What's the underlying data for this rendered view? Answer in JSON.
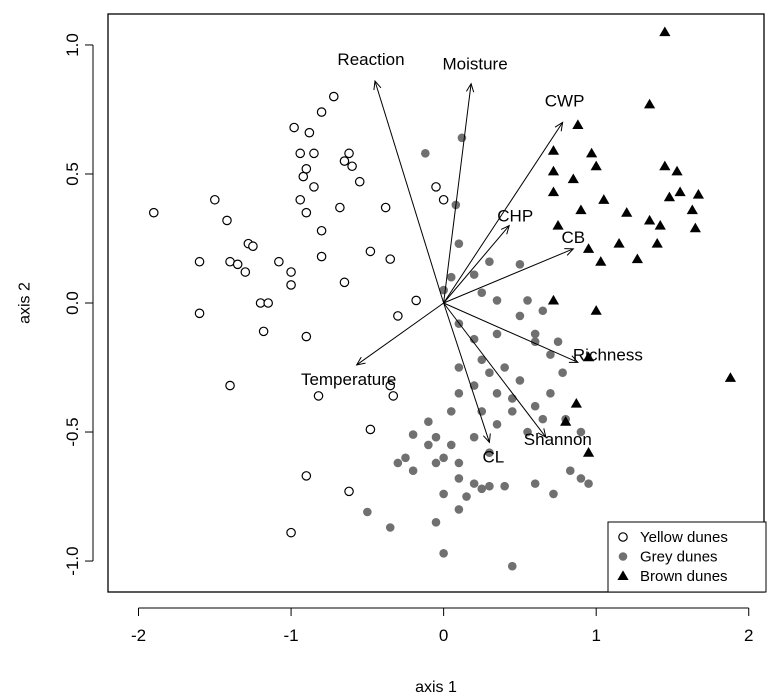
{
  "chart_data": {
    "type": "scatter",
    "title": "",
    "xlabel": "axis 1",
    "ylabel": "axis 2",
    "xlim": [
      -2.2,
      2.1
    ],
    "ylim": [
      -1.12,
      1.12
    ],
    "x_ticks": [
      -2,
      -1,
      0,
      1,
      2
    ],
    "y_ticks": [
      -1.0,
      -0.5,
      0.0,
      0.5,
      1.0
    ],
    "x_tick_labels": [
      "-2",
      "-1",
      "0",
      "1",
      "2"
    ],
    "y_tick_labels": [
      "-1.0",
      "-0.5",
      "0.0",
      "0.5",
      "1.0"
    ],
    "grid": false,
    "legend_position": "bottom-right",
    "series": [
      {
        "name": "Yellow dunes",
        "marker": "open-circle",
        "color": "#000000",
        "points": [
          [
            -1.9,
            0.35
          ],
          [
            -1.6,
            0.16
          ],
          [
            -1.6,
            -0.04
          ],
          [
            -1.5,
            0.4
          ],
          [
            -1.42,
            0.32
          ],
          [
            -1.4,
            0.16
          ],
          [
            -1.35,
            0.15
          ],
          [
            -1.3,
            0.12
          ],
          [
            -1.28,
            0.23
          ],
          [
            -1.25,
            0.22
          ],
          [
            -1.2,
            0.0
          ],
          [
            -1.18,
            -0.11
          ],
          [
            -1.15,
            0.0
          ],
          [
            -1.08,
            0.16
          ],
          [
            -1.0,
            0.12
          ],
          [
            -1.0,
            0.07
          ],
          [
            -0.98,
            0.68
          ],
          [
            -0.94,
            0.58
          ],
          [
            -0.94,
            0.4
          ],
          [
            -0.92,
            0.49
          ],
          [
            -0.9,
            0.52
          ],
          [
            -0.9,
            0.35
          ],
          [
            -0.88,
            0.66
          ],
          [
            -0.85,
            0.58
          ],
          [
            -0.85,
            0.45
          ],
          [
            -0.8,
            0.74
          ],
          [
            -0.8,
            0.28
          ],
          [
            -0.8,
            0.18
          ],
          [
            -0.72,
            0.8
          ],
          [
            -0.68,
            0.37
          ],
          [
            -0.65,
            0.55
          ],
          [
            -0.62,
            0.58
          ],
          [
            -0.6,
            0.53
          ],
          [
            -0.55,
            0.47
          ],
          [
            -0.48,
            0.2
          ],
          [
            -0.38,
            0.37
          ],
          [
            -0.35,
            0.17
          ],
          [
            -0.3,
            -0.05
          ],
          [
            -0.18,
            0.01
          ],
          [
            -0.05,
            0.45
          ],
          [
            0.0,
            0.4
          ],
          [
            -0.65,
            0.08
          ],
          [
            -1.4,
            -0.32
          ],
          [
            -0.9,
            -0.13
          ],
          [
            -0.82,
            -0.36
          ],
          [
            -0.9,
            -0.67
          ],
          [
            -0.62,
            -0.73
          ],
          [
            -0.48,
            -0.49
          ],
          [
            -0.35,
            -0.32
          ],
          [
            -0.33,
            -0.36
          ],
          [
            -1.0,
            -0.89
          ]
        ]
      },
      {
        "name": "Grey dunes",
        "marker": "filled-circle",
        "color": "#707070",
        "points": [
          [
            0.12,
            0.64
          ],
          [
            -0.12,
            0.58
          ],
          [
            0.08,
            0.38
          ],
          [
            0.1,
            0.23
          ],
          [
            0.05,
            0.1
          ],
          [
            0.0,
            0.05
          ],
          [
            0.3,
            0.16
          ],
          [
            0.5,
            0.15
          ],
          [
            0.2,
            0.11
          ],
          [
            0.25,
            0.04
          ],
          [
            0.35,
            0.01
          ],
          [
            0.55,
            0.01
          ],
          [
            0.65,
            -0.03
          ],
          [
            0.1,
            -0.08
          ],
          [
            0.2,
            -0.14
          ],
          [
            0.35,
            -0.12
          ],
          [
            0.5,
            -0.05
          ],
          [
            0.6,
            -0.12
          ],
          [
            0.75,
            -0.15
          ],
          [
            0.1,
            -0.25
          ],
          [
            0.25,
            -0.22
          ],
          [
            0.3,
            -0.27
          ],
          [
            0.4,
            -0.25
          ],
          [
            0.5,
            -0.3
          ],
          [
            0.6,
            -0.15
          ],
          [
            0.7,
            -0.2
          ],
          [
            0.78,
            -0.27
          ],
          [
            0.1,
            -0.35
          ],
          [
            0.2,
            -0.32
          ],
          [
            0.35,
            -0.35
          ],
          [
            0.45,
            -0.37
          ],
          [
            0.6,
            -0.4
          ],
          [
            0.7,
            -0.35
          ],
          [
            0.8,
            -0.45
          ],
          [
            0.9,
            -0.5
          ],
          [
            0.05,
            -0.42
          ],
          [
            0.25,
            -0.42
          ],
          [
            0.35,
            -0.47
          ],
          [
            0.45,
            -0.42
          ],
          [
            0.55,
            -0.5
          ],
          [
            0.65,
            -0.45
          ],
          [
            -0.1,
            -0.46
          ],
          [
            -0.05,
            -0.52
          ],
          [
            0.05,
            -0.55
          ],
          [
            -0.2,
            -0.51
          ],
          [
            -0.1,
            -0.55
          ],
          [
            -0.25,
            -0.6
          ],
          [
            0.2,
            -0.52
          ],
          [
            0.3,
            -0.58
          ],
          [
            -0.05,
            -0.62
          ],
          [
            0.0,
            -0.6
          ],
          [
            0.1,
            -0.62
          ],
          [
            -0.3,
            -0.62
          ],
          [
            -0.2,
            -0.65
          ],
          [
            0.1,
            -0.68
          ],
          [
            0.2,
            -0.7
          ],
          [
            0.4,
            -0.71
          ],
          [
            0.0,
            -0.74
          ],
          [
            0.3,
            -0.71
          ],
          [
            0.6,
            -0.7
          ],
          [
            0.72,
            -0.74
          ],
          [
            0.83,
            -0.65
          ],
          [
            0.9,
            -0.68
          ],
          [
            0.95,
            -0.7
          ],
          [
            0.1,
            -0.8
          ],
          [
            0.25,
            -0.72
          ],
          [
            -0.5,
            -0.81
          ],
          [
            -0.35,
            -0.87
          ],
          [
            -0.05,
            -0.85
          ],
          [
            0.0,
            -0.97
          ],
          [
            0.45,
            -1.02
          ],
          [
            0.15,
            -0.75
          ]
        ]
      },
      {
        "name": "Brown dunes",
        "marker": "filled-triangle",
        "color": "#000000",
        "points": [
          [
            1.45,
            1.05
          ],
          [
            1.35,
            0.77
          ],
          [
            0.88,
            0.69
          ],
          [
            0.72,
            0.59
          ],
          [
            0.97,
            0.58
          ],
          [
            0.72,
            0.51
          ],
          [
            0.85,
            0.48
          ],
          [
            1.0,
            0.53
          ],
          [
            1.45,
            0.53
          ],
          [
            1.53,
            0.51
          ],
          [
            0.72,
            0.43
          ],
          [
            1.05,
            0.4
          ],
          [
            1.48,
            0.41
          ],
          [
            1.55,
            0.43
          ],
          [
            1.67,
            0.42
          ],
          [
            0.9,
            0.36
          ],
          [
            1.2,
            0.35
          ],
          [
            1.35,
            0.32
          ],
          [
            1.42,
            0.3
          ],
          [
            1.63,
            0.36
          ],
          [
            1.65,
            0.29
          ],
          [
            0.75,
            0.3
          ],
          [
            0.95,
            0.21
          ],
          [
            1.03,
            0.16
          ],
          [
            1.15,
            0.23
          ],
          [
            1.27,
            0.17
          ],
          [
            1.4,
            0.23
          ],
          [
            0.72,
            0.01
          ],
          [
            1.0,
            -0.03
          ],
          [
            0.95,
            -0.21
          ],
          [
            0.87,
            -0.39
          ],
          [
            0.8,
            -0.46
          ],
          [
            0.95,
            -0.58
          ],
          [
            1.88,
            -0.29
          ]
        ]
      }
    ],
    "vectors": [
      {
        "label": "Reaction",
        "x": -0.45,
        "y": 0.86
      },
      {
        "label": "Moisture",
        "x": 0.18,
        "y": 0.85
      },
      {
        "label": "CWP",
        "x": 0.78,
        "y": 0.7
      },
      {
        "label": "CHP",
        "x": 0.43,
        "y": 0.3
      },
      {
        "label": "CB",
        "x": 0.85,
        "y": 0.21
      },
      {
        "label": "Temperature",
        "x": -0.57,
        "y": -0.24
      },
      {
        "label": "Richness",
        "x": 0.88,
        "y": -0.23
      },
      {
        "label": "CL",
        "x": 0.3,
        "y": -0.54
      },
      {
        "label": "Shannon",
        "x": 0.67,
        "y": -0.52
      }
    ]
  }
}
